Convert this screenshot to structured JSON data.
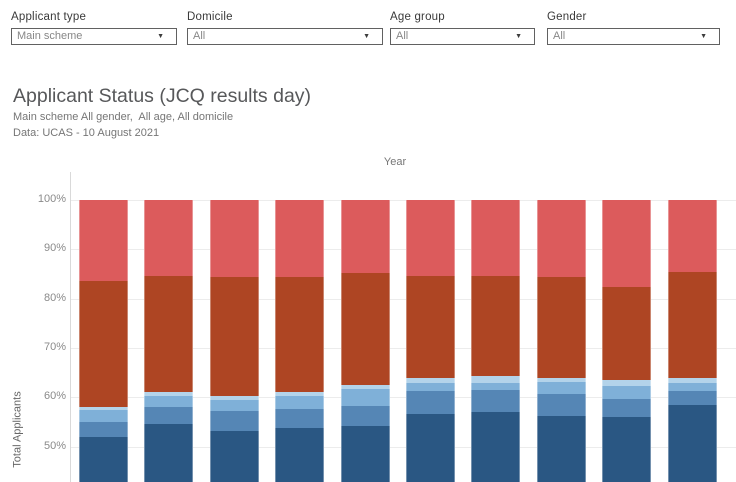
{
  "filters": [
    {
      "label": "Applicant type",
      "value": "Main scheme"
    },
    {
      "label": "Domicile",
      "value": "All"
    },
    {
      "label": "Age group",
      "value": "All"
    },
    {
      "label": "Gender",
      "value": "All"
    }
  ],
  "header": {
    "title": "Applicant Status (JCQ results day)",
    "subtitle": "Main scheme All gender,  All age, All domicile",
    "source": "Data: UCAS - 10 August 2021"
  },
  "chart_data": {
    "type": "bar",
    "stacked": true,
    "orientation": "vertical",
    "x_axis_title": "Year",
    "y_axis_title": "Total Applicants",
    "y_ticks": [
      {
        "label": "100%",
        "value": 100
      },
      {
        "label": "90%",
        "value": 90
      },
      {
        "label": "80%",
        "value": 80
      },
      {
        "label": "70%",
        "value": 70
      },
      {
        "label": "60%",
        "value": 60
      },
      {
        "label": "50%",
        "value": 50
      }
    ],
    "visible_y_range_percent": [
      48.5,
      100
    ],
    "bar_count": 10,
    "x_tick_labels_visible": false,
    "legend_visible": false,
    "unit": "percent of total applicants",
    "series": [
      {
        "name": "red-light-top",
        "color": "#DC5B5C",
        "values": [
          16.5,
          15.5,
          15.6,
          15.7,
          14.8,
          15.5,
          15.4,
          15.7,
          17.6,
          14.7
        ]
      },
      {
        "name": "red-dark",
        "color": "#AE4523",
        "values": [
          25.5,
          23.5,
          24.1,
          23.2,
          22.8,
          20.7,
          20.2,
          20.5,
          19.0,
          21.5
        ]
      },
      {
        "name": "blue-pale",
        "color": "#B3D3EA",
        "values": [
          0.6,
          0.8,
          0.8,
          0.9,
          0.8,
          0.9,
          1.5,
          0.8,
          1.2,
          1.0
        ]
      },
      {
        "name": "blue-light",
        "color": "#7FB0D8",
        "values": [
          2.5,
          2.2,
          2.3,
          2.6,
          3.3,
          1.7,
          1.5,
          2.4,
          2.6,
          1.6
        ]
      },
      {
        "name": "blue-medium",
        "color": "#5586B5",
        "values": [
          3.0,
          3.4,
          4.1,
          3.8,
          4.1,
          4.7,
          4.4,
          4.4,
          3.7,
          2.8
        ]
      },
      {
        "name": "blue-dark",
        "color": "#2A5783",
        "note": "bottom segment truncated by screenshot edge",
        "top_boundary_cumulative_percent": [
          51.9,
          54.6,
          53.1,
          53.8,
          54.2,
          56.5,
          57.0,
          56.2,
          55.9,
          58.4
        ]
      }
    ]
  },
  "colors": {
    "red_light": "#DC5B5C",
    "red_dark": "#AE4523",
    "blue_pale": "#B3D3EA",
    "blue_light": "#7FB0D8",
    "blue_medium": "#5586B5",
    "blue_dark": "#2A5783",
    "gridline": "#ECECEC",
    "axis_line": "#D9D9D9"
  }
}
